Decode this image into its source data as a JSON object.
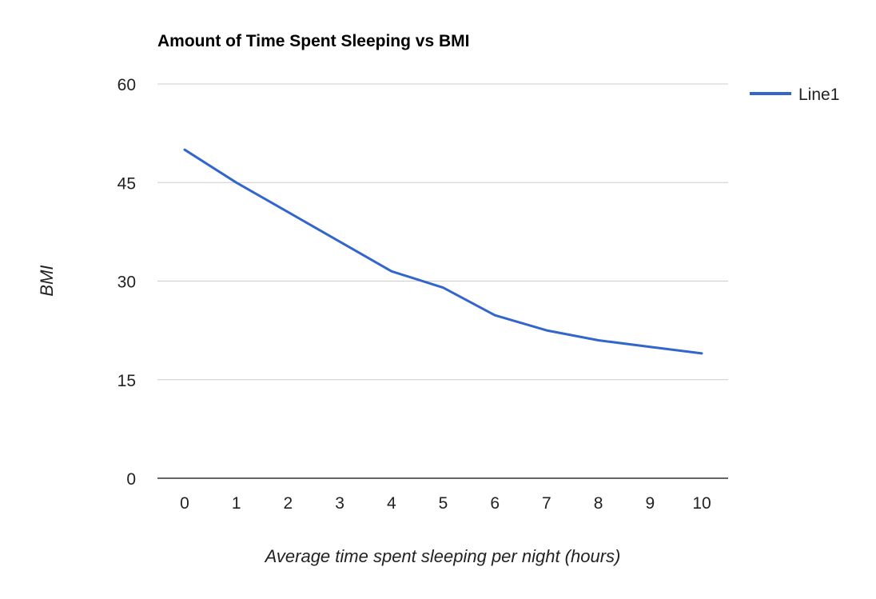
{
  "chart_data": {
    "type": "line",
    "title": "Amount of Time Spent Sleeping vs BMI",
    "xlabel": "Average time spent sleeping per night (hours)",
    "ylabel": "BMI",
    "categories": [
      "0",
      "1",
      "2",
      "3",
      "4",
      "5",
      "6",
      "7",
      "8",
      "9",
      "10"
    ],
    "series": [
      {
        "name": "Line1",
        "color": "#3366cc",
        "values": [
          50,
          45,
          40.5,
          36,
          31.5,
          29,
          24.8,
          22.5,
          21,
          20,
          19
        ]
      }
    ],
    "ylim": [
      0,
      60
    ],
    "yticks": [
      "0",
      "15",
      "30",
      "45",
      "60"
    ],
    "grid": true,
    "legend_position": "right",
    "gridline_color": "#cccccc",
    "baseline_color": "#333333"
  }
}
